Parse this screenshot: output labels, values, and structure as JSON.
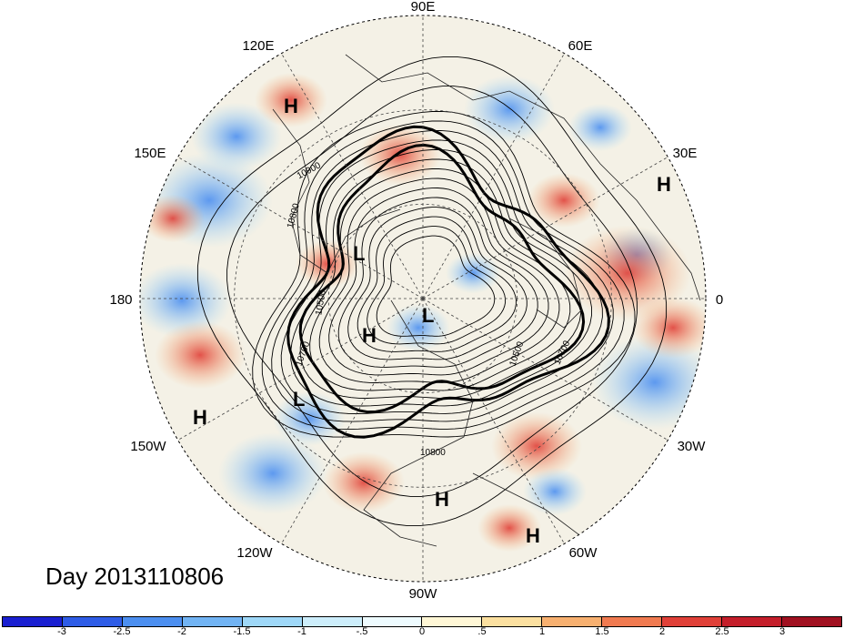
{
  "lon_labels": [
    "90E",
    "60E",
    "30E",
    "0",
    "30W",
    "60W",
    "90W",
    "120W",
    "150W",
    "180",
    "150E",
    "120E"
  ],
  "day_label": "Day 2013110806",
  "contour_labels": [
    "10900",
    "10800",
    "10500",
    "10700",
    "10500",
    "10700",
    "10800"
  ],
  "markers": [
    "H",
    "H",
    "L",
    "H",
    "L",
    "L",
    "H",
    "H",
    "H"
  ],
  "colorbar": {
    "ticks": [
      "-3",
      "-2.5",
      "-2",
      "-1.5",
      "-1",
      "-.5",
      "0",
      ".5",
      "1",
      "1.5",
      "2",
      "2.5",
      "3"
    ],
    "colors": [
      "#1a1fd1",
      "#2e5ce6",
      "#4c8ff0",
      "#72b4f4",
      "#9fd8f8",
      "#cdeefb",
      "#eefbff",
      "#fff7d6",
      "#fbe0a0",
      "#f7b070",
      "#f07a50",
      "#e04038",
      "#c41e2a",
      "#a01020"
    ]
  }
}
